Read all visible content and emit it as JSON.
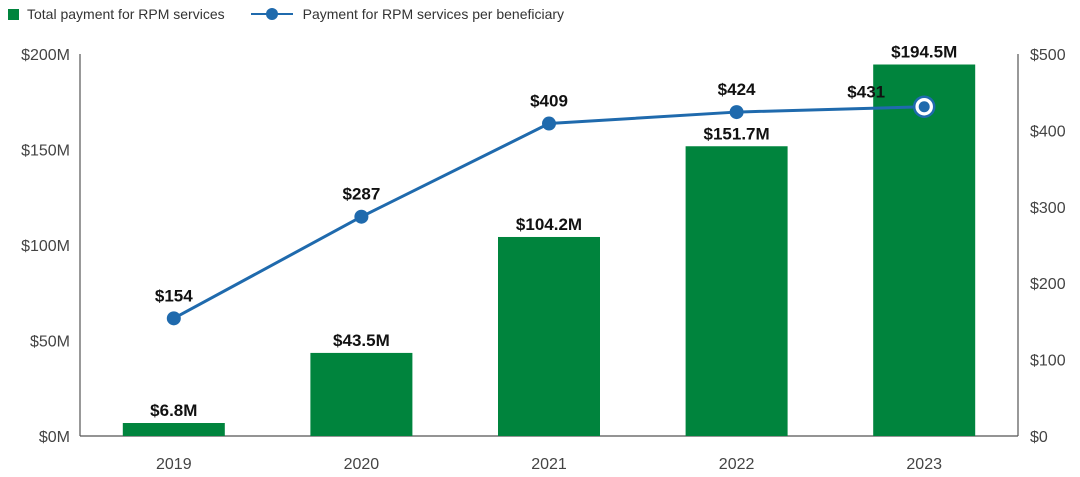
{
  "chart_data": {
    "type": "bar+line",
    "categories": [
      "2019",
      "2020",
      "2021",
      "2022",
      "2023"
    ],
    "series": [
      {
        "name": "Total payment for RPM services",
        "type": "bar",
        "axis": "left",
        "values": [
          6.8,
          43.5,
          104.2,
          151.7,
          194.5
        ],
        "labels": [
          "$6.8M",
          "$43.5M",
          "$104.2M",
          "$151.7M",
          "$194.5M"
        ],
        "color": "#00843d"
      },
      {
        "name": "Payment for RPM services per beneficiary",
        "type": "line",
        "axis": "right",
        "values": [
          154,
          287,
          409,
          424,
          431
        ],
        "labels": [
          "$154",
          "$287",
          "$409",
          "$424",
          "$431"
        ],
        "color": "#1f6aad"
      }
    ],
    "y_left": {
      "range": [
        0,
        200
      ],
      "ticks": [
        0,
        50,
        100,
        150,
        200
      ],
      "tick_labels": [
        "$0M",
        "$50M",
        "$100M",
        "$150M",
        "$200M"
      ]
    },
    "y_right": {
      "range": [
        0,
        500
      ],
      "ticks": [
        0,
        100,
        200,
        300,
        400,
        500
      ],
      "tick_labels": [
        "$0",
        "$100",
        "$200",
        "$300",
        "$400",
        "$500"
      ]
    },
    "legend_position": "top-left",
    "grid": false
  }
}
